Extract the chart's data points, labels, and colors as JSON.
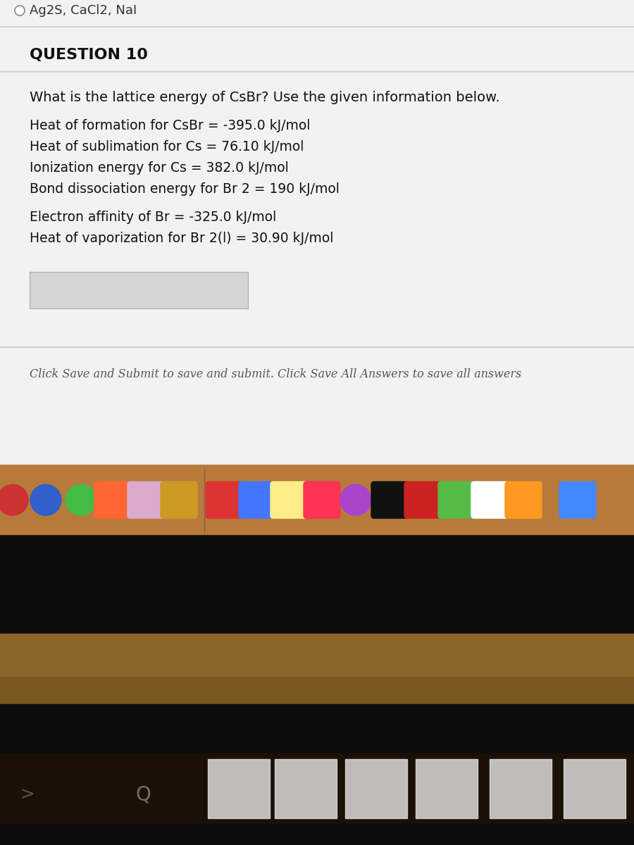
{
  "top_text": "Ag2S, CaCl2, NaI",
  "question_label": "QUESTION 10",
  "question_text": "What is the lattice energy of CsBr? Use the given information below.",
  "info_lines_group1": [
    "Heat of formation for CsBr = -395.0 kJ/mol",
    "Heat of sublimation for Cs = 76.10 kJ/mol",
    "Ionization energy for Cs = 382.0 kJ/mol",
    "Bond dissociation energy for Br 2 = 190 kJ/mol"
  ],
  "info_lines_group2": [
    "Electron affinity of Br = -325.0 kJ/mol",
    "Heat of vaporization for Br 2(l) = 30.90 kJ/mol"
  ],
  "footer_text": "Click Save and Submit to save and submit. Click Save All Answers to save all answers",
  "exam_bg": "#f2f2f2",
  "separator_color": "#cccccc",
  "input_box_color": "#d5d5d5",
  "dock_bg": "#b87a3a",
  "black_screen": "#0d0d0d",
  "brown_desk": "#8a6030",
  "bottom_dark": "#1a1008",
  "thumb_area_bg": "#1a1a1a",
  "thumb_color": "#cccccc"
}
